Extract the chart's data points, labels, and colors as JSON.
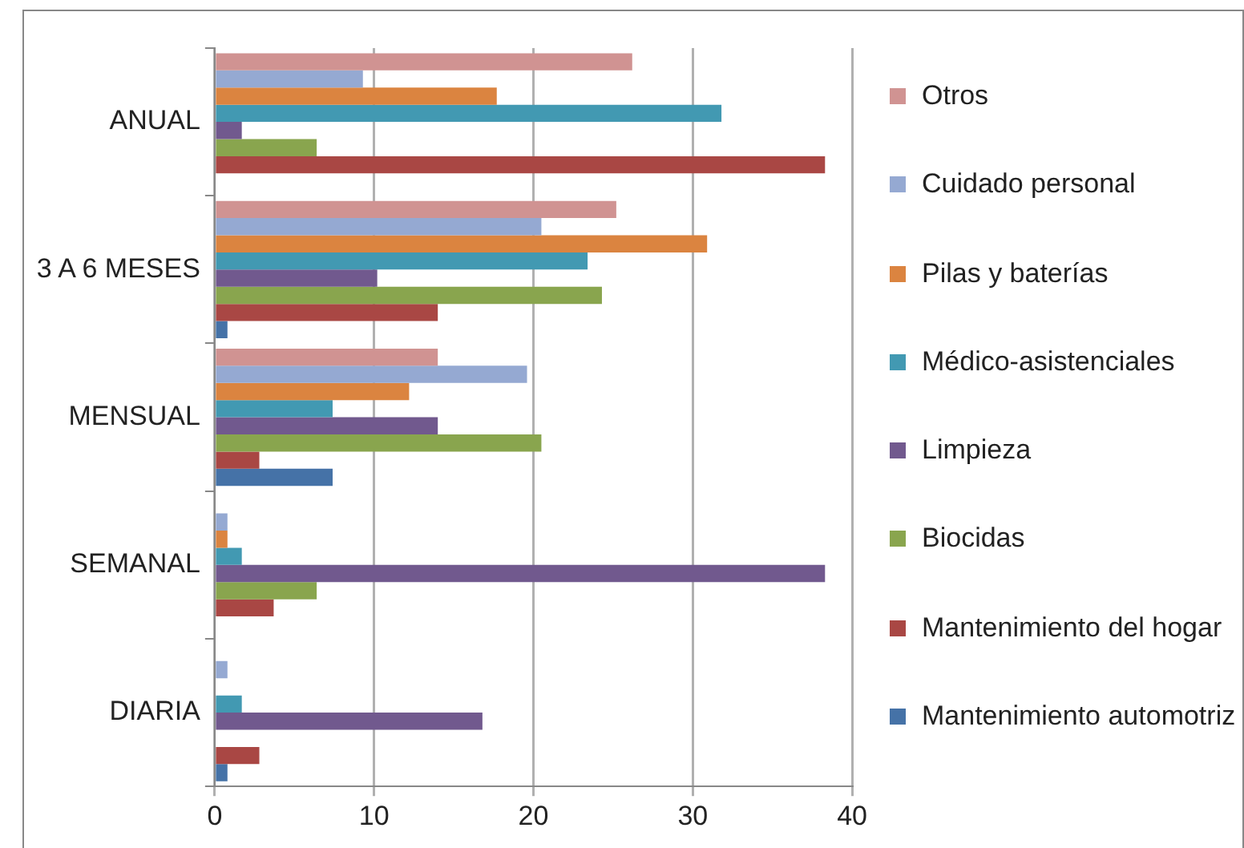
{
  "chart_data": {
    "type": "bar",
    "orientation": "horizontal",
    "categories": [
      "ANUAL",
      "3 A 6 MESES",
      "MENSUAL",
      "SEMANAL",
      "DIARIA"
    ],
    "series": [
      {
        "name": "Otros",
        "color": "#d09392",
        "values": [
          26.2,
          25.2,
          14.0,
          0,
          0
        ]
      },
      {
        "name": "Cuidado personal",
        "color": "#95a9d2",
        "values": [
          9.3,
          20.5,
          19.6,
          0.8,
          0.8
        ]
      },
      {
        "name": "Pilas y baterías",
        "color": "#db8440",
        "values": [
          17.7,
          30.9,
          12.2,
          0.8,
          0
        ]
      },
      {
        "name": "Médico-asistenciales",
        "color": "#4299b2",
        "values": [
          31.8,
          23.4,
          7.4,
          1.7,
          1.7
        ]
      },
      {
        "name": "Limpieza",
        "color": "#71598e",
        "values": [
          1.7,
          10.2,
          14.0,
          38.3,
          16.8
        ]
      },
      {
        "name": "Biocidas",
        "color": "#89a54e",
        "values": [
          6.4,
          24.3,
          20.5,
          6.4,
          0
        ]
      },
      {
        "name": "Mantenimiento del hogar",
        "color": "#a94744",
        "values": [
          38.3,
          14.0,
          2.8,
          3.7,
          2.8
        ]
      },
      {
        "name": "Mantenimiento automotriz",
        "color": "#4572a7",
        "values": [
          0,
          0.8,
          7.4,
          0,
          0.8
        ]
      }
    ],
    "xlim": [
      0,
      40
    ],
    "xticks": [
      0,
      10,
      20,
      30,
      40
    ],
    "grid": "x",
    "legend": "right"
  }
}
